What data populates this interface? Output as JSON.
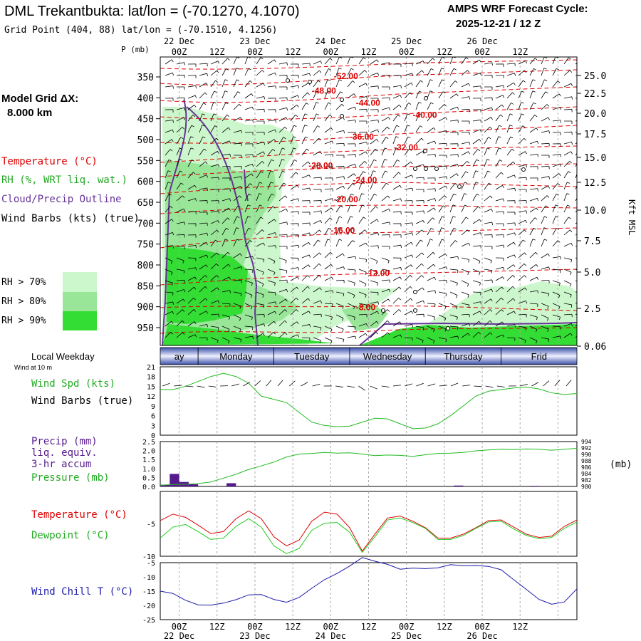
{
  "header": {
    "title": "DML Trekantbukta:  lat/lon = (-70.1270, 4.1070)",
    "subtitle": "Grid Point (404, 88) lat/lon = (-70.1510, 4.1256)",
    "forecast_label": "AMPS WRF Forecast Cycle:",
    "forecast_cycle": "2025-12-21 / 12  Z"
  },
  "left_legend": {
    "model_grid": "Model Grid ΔX:",
    "grid_km": "8.000 km",
    "temperature": "Temperature (°C)",
    "rh": "RH (%, WRT liq. wat.)",
    "cloud": "Cloud/Precip Outline",
    "wind": "Wind Barbs (kts) (true)",
    "rh70": "RH > 70%",
    "rh80": "RH > 80%",
    "rh90": "RH > 90%"
  },
  "colors": {
    "rh70": "#ccf7cc",
    "rh80": "#99e699",
    "rh90": "#33dd33",
    "temperature": "#dd0000",
    "cloud": "#663399",
    "wind_speed": "#22bb22",
    "dewpoint": "#22cc22",
    "wind_chill": "#1a1aaa",
    "pressure": "#22bb22",
    "precip": "#551a8b",
    "grid": "#aaaaaa"
  },
  "axis": {
    "p_unit": "P (mb)",
    "kft": "Kft MSL",
    "mb": "(mb)",
    "ticks": [
      "00Z",
      "12Z",
      "00Z",
      "12Z",
      "00Z",
      "12Z",
      "00Z",
      "12Z",
      "00Z",
      "12Z"
    ],
    "top_ticks": [
      "00Z",
      "12Z",
      "00Z",
      "12Z",
      "00Z",
      "12Z",
      "00Z",
      "12Z",
      "00Z",
      "12Z"
    ],
    "dates": [
      "22 Dec",
      "23 Dec",
      "24 Dec",
      "25 Dec",
      "26 Dec"
    ],
    "top_dates": [
      "22 Dec",
      "23 Dec",
      "24 Dec",
      "25 Dec",
      "26 Dec"
    ]
  },
  "weekday_strip": {
    "title": "Local Weekday",
    "sub": "Wind at 10 m",
    "days": [
      "ay",
      "Monday",
      "Tuesday",
      "Wednesday",
      "Thursday",
      "Frid"
    ]
  },
  "panel_labels": {
    "wind_spd": "Wind Spd (kts)",
    "wind_barbs": "Wind Barbs (true)",
    "precip1": "Precip (mm)",
    "precip2": "liq. equiv.",
    "precip3": "3-hr accum",
    "pressure": "Pressure (mb)",
    "temperature": "Temperature (°C)",
    "dewpoint": "Dewpoint (°C)",
    "wind_chill": "Wind Chill T (°C)"
  },
  "chart_data": [
    {
      "type": "heatmap",
      "name": "cross-section",
      "x_hours_from_start": [
        0,
        132
      ],
      "pressure_levels_mb": [
        "350",
        "400",
        "450",
        "500",
        "550",
        "600",
        "650",
        "700",
        "750",
        "800",
        "850",
        "900",
        "950"
      ],
      "height_kft": [
        "25.0",
        "22.5",
        "20.0",
        "17.5",
        "15.0",
        "12.5",
        "10.0",
        "7.5",
        "5.0",
        "2.5",
        "0.06"
      ],
      "temperature_contours": [
        {
          "label": "-52.00",
          "t": 55,
          "p": 348
        },
        {
          "label": "-48.00",
          "t": 48,
          "p": 383
        },
        {
          "label": "-44.00",
          "t": 62,
          "p": 412
        },
        {
          "label": "-40.00",
          "t": 80,
          "p": 441
        },
        {
          "label": "-36.00",
          "t": 60,
          "p": 493
        },
        {
          "label": "-32.00",
          "t": 74,
          "p": 519
        },
        {
          "label": "-28.00",
          "t": 47,
          "p": 562
        },
        {
          "label": "-24.00",
          "t": 61,
          "p": 597
        },
        {
          "label": "-20.00",
          "t": 55,
          "p": 643
        },
        {
          "label": "-16.00",
          "t": 54,
          "p": 717
        },
        {
          "label": "-12.00",
          "t": 65,
          "p": 820
        },
        {
          "label": "-8.00",
          "t": 62,
          "p": 901
        }
      ]
    },
    {
      "type": "line",
      "name": "wind-speed",
      "ylim": [
        0,
        21
      ],
      "yticks": [
        "21",
        "18",
        "15",
        "12",
        "9",
        "6",
        "3",
        "0"
      ],
      "x": [
        0,
        4,
        8,
        12,
        16,
        20,
        24,
        28,
        30,
        32,
        36,
        40,
        44,
        48,
        52,
        56,
        60,
        64,
        68,
        72,
        76,
        80,
        84,
        88,
        92,
        96,
        100,
        104,
        108,
        112,
        116,
        120,
        124,
        128,
        132
      ],
      "values": [
        14,
        14,
        15,
        16.5,
        18,
        19,
        18,
        16,
        14,
        12,
        11,
        10,
        7,
        4,
        3,
        2.6,
        2.8,
        4,
        5.2,
        5,
        3.5,
        2,
        2.2,
        3.5,
        6,
        9,
        12,
        13.5,
        14,
        14.5,
        14.8,
        14.2,
        13,
        12.5,
        12.8
      ]
    },
    {
      "type": "bar",
      "name": "precip",
      "ylim": [
        0,
        2.5
      ],
      "yticks": [
        "2.5",
        "2.0",
        "1.5",
        "1.0",
        "0.5",
        "0.0"
      ],
      "bars": [
        {
          "x": 1.5,
          "value": 0.1
        },
        {
          "x": 4.5,
          "value": 0.7
        },
        {
          "x": 7.5,
          "value": 0.25
        },
        {
          "x": 10.5,
          "value": 0.12
        },
        {
          "x": 22.5,
          "value": 0.18
        },
        {
          "x": 94.5,
          "value": 0.05
        },
        {
          "x": 118.5,
          "value": 0.03
        }
      ]
    },
    {
      "type": "line",
      "name": "pressure",
      "ylim": [
        980,
        994
      ],
      "yticks": [
        "994",
        "992",
        "990",
        "988",
        "986",
        "984",
        "982",
        "980"
      ],
      "x": [
        0,
        4,
        8,
        12,
        16,
        20,
        24,
        28,
        32,
        36,
        40,
        44,
        48,
        52,
        56,
        60,
        64,
        68,
        72,
        76,
        80,
        84,
        88,
        92,
        96,
        100,
        104,
        108,
        112,
        116,
        120,
        124,
        128,
        132
      ],
      "values": [
        980.4,
        980.6,
        980.7,
        980.9,
        981.4,
        982.6,
        983.8,
        985.3,
        986.4,
        987.6,
        989.2,
        990.1,
        990.3,
        990.6,
        990.4,
        990.5,
        990.1,
        989.6,
        989.8,
        989.7,
        989.4,
        989.9,
        990.3,
        990.4,
        990.6,
        991.1,
        991.4,
        991.6,
        991.5,
        991.7,
        991.6,
        991.3,
        991.6,
        991.9
      ]
    },
    {
      "type": "line",
      "name": "temperature-dewpoint",
      "ylim": [
        -10,
        0
      ],
      "yticks": [
        "-5",
        "-10"
      ],
      "series": [
        {
          "name": "Temperature (°C)",
          "x": [
            0,
            4,
            8,
            12,
            16,
            20,
            24,
            28,
            32,
            36,
            40,
            44,
            48,
            52,
            56,
            60,
            64,
            68,
            72,
            76,
            80,
            84,
            88,
            92,
            96,
            100,
            104,
            108,
            112,
            116,
            120,
            124,
            128,
            132
          ],
          "values": [
            -4.5,
            -3.5,
            -4,
            -5.2,
            -6.5,
            -6.2,
            -4.2,
            -3,
            -4.2,
            -7,
            -8.4,
            -7.5,
            -4.6,
            -3.2,
            -3.5,
            -5.6,
            -9.2,
            -6.6,
            -4.1,
            -3.8,
            -4.6,
            -5.6,
            -7.2,
            -7.2,
            -6.6,
            -5.6,
            -4.5,
            -4.4,
            -5.5,
            -6.6,
            -7.1,
            -6.9,
            -5.4,
            -4.4
          ]
        },
        {
          "name": "Dewpoint (°C)",
          "x": [
            0,
            4,
            8,
            12,
            16,
            20,
            24,
            28,
            32,
            36,
            40,
            44,
            48,
            52,
            56,
            60,
            64,
            68,
            72,
            76,
            80,
            84,
            88,
            92,
            96,
            100,
            104,
            108,
            112,
            116,
            120,
            124,
            128,
            132
          ],
          "values": [
            -7.2,
            -5.5,
            -5.1,
            -6.2,
            -7.4,
            -7.2,
            -5.4,
            -4.2,
            -5.5,
            -8.4,
            -9.6,
            -8.8,
            -6,
            -4.9,
            -4.8,
            -6.3,
            -9.4,
            -7,
            -4.4,
            -4.1,
            -4.8,
            -5.7,
            -7.4,
            -7.4,
            -6.8,
            -5.7,
            -4.7,
            -4.6,
            -5.8,
            -6.8,
            -7.3,
            -7.1,
            -5.7,
            -4.7
          ]
        }
      ]
    },
    {
      "type": "line",
      "name": "wind-chill",
      "ylim": [
        -25,
        -5
      ],
      "yticks": [
        "-5",
        "-10",
        "-15",
        "-20",
        "-25"
      ],
      "x": [
        0,
        4,
        8,
        12,
        16,
        20,
        24,
        28,
        32,
        36,
        40,
        44,
        48,
        52,
        56,
        60,
        64,
        68,
        72,
        76,
        80,
        84,
        88,
        92,
        96,
        100,
        104,
        108,
        112,
        116,
        120,
        124,
        128,
        132
      ],
      "values": [
        -15,
        -15.8,
        -18.2,
        -19.8,
        -19.9,
        -19.2,
        -18,
        -16.3,
        -16.2,
        -17.9,
        -18.9,
        -17.2,
        -14,
        -11,
        -8.8,
        -6.2,
        -3.2,
        -4.5,
        -5.6,
        -7.3,
        -6.9,
        -7.1,
        -6.8,
        -5.7,
        -6.1,
        -6,
        -6.3,
        -7.5,
        -11,
        -14.4,
        -17.9,
        -19.6,
        -18.8,
        -14.2
      ]
    }
  ]
}
